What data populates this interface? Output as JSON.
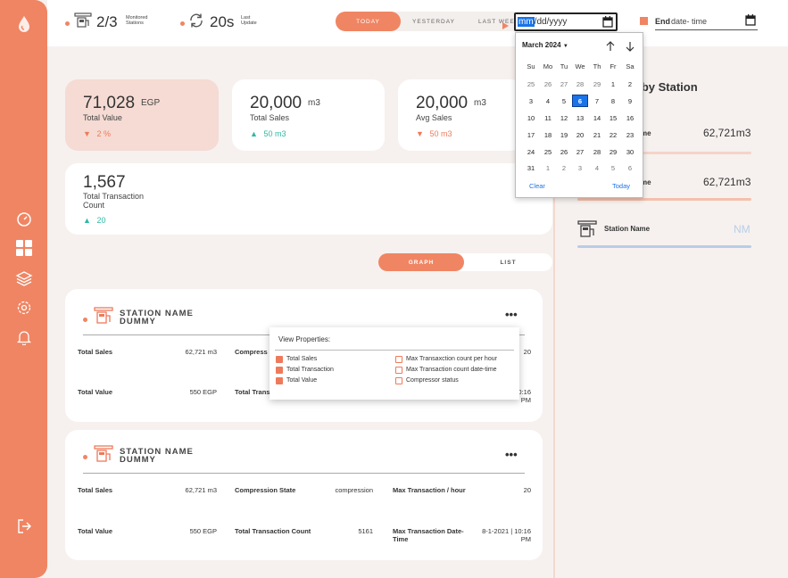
{
  "topbar": {
    "monitored_value": "2/3",
    "monitored_label_1": "Monitored",
    "monitored_label_2": "Stations",
    "last_update_value": "20s",
    "last_update_label_1": "Last",
    "last_update_label_2": "Update",
    "range_tabs": [
      "TODAY",
      "YESTERDAY",
      "LAST WEEK"
    ],
    "start_date": {
      "mm": "mm",
      "rest": "/dd/yyyy"
    },
    "end_label": "End",
    "end_placeholder": "date- time"
  },
  "kpis": [
    {
      "value": "71,028",
      "unit": "EGP",
      "label": "Total Value",
      "delta": "2 %",
      "trend": "down"
    },
    {
      "value": "20,000",
      "unit": "m3",
      "label": "Total Sales",
      "delta": "50 m3",
      "trend": "up"
    },
    {
      "value": "20,000",
      "unit": "m3",
      "label": "Avg Sales",
      "delta": "50 m3",
      "trend": "down"
    },
    {
      "value": "1,567",
      "unit": "",
      "label_1": "Total Transaction",
      "label_2": "Count",
      "delta": "20",
      "trend": "up"
    }
  ],
  "view_toggle": {
    "graph": "GRAPH",
    "list": "LIST"
  },
  "station_cards": [
    {
      "title_1": "STATION NAME",
      "title_2": "DUMMY",
      "rows": [
        {
          "k1": "Total Sales",
          "v1": "62,721 m3",
          "k2": "Compress",
          "v2": "",
          "k3": "",
          "v3": "20"
        },
        {
          "k1": "Total Value",
          "v1": "550 EGP",
          "k2": "Total Trans",
          "v2": "",
          "k3": "",
          "v3": ":10:16",
          "v3b": "PM"
        }
      ]
    },
    {
      "title_1": "STATION NAME",
      "title_2": "DUMMY",
      "rows": [
        {
          "k1": "Total Sales",
          "v1": "62,721 m3",
          "k2": "Compression State",
          "v2": "compression",
          "k3": "Max Transaction / hour",
          "v3": "20"
        },
        {
          "k1": "Total Value",
          "v1": "550 EGP",
          "k2": "Total Transaction Count",
          "v2": "5161",
          "k3a": "Max Transaction Date-",
          "k3b": "Time",
          "v3a": "8-1-2021 | 10:16",
          "v3b": "PM"
        }
      ]
    }
  ],
  "right_panel": {
    "title": "s by Station",
    "items": [
      {
        "label": "me",
        "value": "62,721m3"
      },
      {
        "label": "me",
        "value": "62,721m3"
      },
      {
        "label": "Station Name",
        "value": "NM"
      }
    ]
  },
  "view_properties": {
    "title": "View Properties:",
    "left": [
      {
        "label": "Total Sales",
        "checked": true
      },
      {
        "label": "Total Transaction",
        "checked": true
      },
      {
        "label": "Total Value",
        "checked": true
      }
    ],
    "right": [
      {
        "label": "Max Transaxction count per hour",
        "checked": false
      },
      {
        "label": "Max Transaction count date-time",
        "checked": false
      },
      {
        "label": "Compressor status",
        "checked": false
      }
    ]
  },
  "date_picker": {
    "month": "March 2024",
    "weekdays": [
      "Su",
      "Mo",
      "Tu",
      "We",
      "Th",
      "Fr",
      "Sa"
    ],
    "weeks": [
      [
        "25",
        "26",
        "27",
        "28",
        "29",
        "1",
        "2"
      ],
      [
        "3",
        "4",
        "5",
        "6",
        "7",
        "8",
        "9"
      ],
      [
        "10",
        "11",
        "12",
        "13",
        "14",
        "15",
        "16"
      ],
      [
        "17",
        "18",
        "19",
        "20",
        "21",
        "22",
        "23"
      ],
      [
        "24",
        "25",
        "26",
        "27",
        "28",
        "29",
        "30"
      ],
      [
        "31",
        "1",
        "2",
        "3",
        "4",
        "5",
        "6"
      ]
    ],
    "selected": "6",
    "clear": "Clear",
    "today": "Today"
  },
  "colors": {
    "accent": "#f08563",
    "up": "#2fb9a6",
    "down": "#ef7a5a",
    "picker_blue": "#1a73e8"
  }
}
